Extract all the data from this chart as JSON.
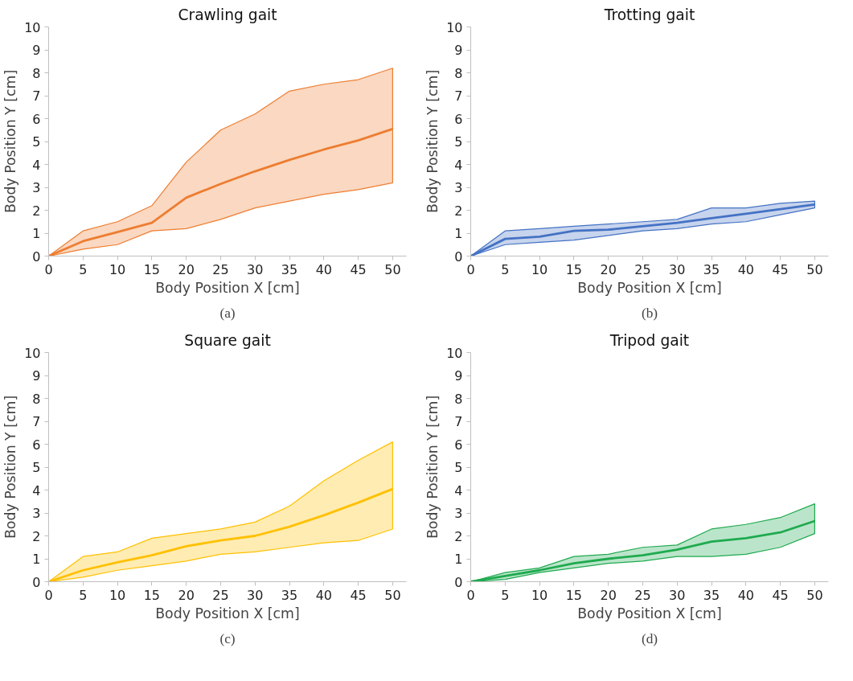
{
  "chart_data": [
    {
      "type": "line",
      "title": "Crawling gait",
      "xlabel": "Body Position X [cm]",
      "ylabel": "Body Position Y [cm]",
      "annotations": [
        "(a)"
      ],
      "x": [
        0,
        5,
        10,
        15,
        20,
        25,
        30,
        35,
        40,
        45,
        50
      ],
      "xlim": [
        0,
        52
      ],
      "ylim": [
        0,
        10
      ],
      "xticks": [
        0,
        5,
        10,
        15,
        20,
        25,
        30,
        35,
        40,
        45,
        50
      ],
      "yticks": [
        0,
        1,
        2,
        3,
        4,
        5,
        6,
        7,
        8,
        9,
        10
      ],
      "grid": false,
      "series": [
        {
          "color": "#ed7d31",
          "values": [
            0,
            0.65,
            1.05,
            1.45,
            2.55,
            3.15,
            3.7,
            4.2,
            4.65,
            5.05,
            5.55
          ],
          "lower": [
            0,
            0.3,
            0.5,
            1.1,
            1.2,
            1.6,
            2.1,
            2.4,
            2.7,
            2.9,
            3.2
          ],
          "upper": [
            0,
            1.1,
            1.5,
            2.2,
            4.1,
            5.5,
            6.2,
            7.2,
            7.5,
            7.7,
            8.2
          ]
        }
      ]
    },
    {
      "type": "line",
      "title": "Trotting gait",
      "xlabel": "Body Position X [cm]",
      "ylabel": "Body Position Y [cm]",
      "annotations": [
        "(b)"
      ],
      "x": [
        0,
        5,
        10,
        15,
        20,
        25,
        30,
        35,
        40,
        45,
        50
      ],
      "xlim": [
        0,
        52
      ],
      "ylim": [
        0,
        10
      ],
      "xticks": [
        0,
        5,
        10,
        15,
        20,
        25,
        30,
        35,
        40,
        45,
        50
      ],
      "yticks": [
        0,
        1,
        2,
        3,
        4,
        5,
        6,
        7,
        8,
        9,
        10
      ],
      "grid": false,
      "series": [
        {
          "color": "#4472c4",
          "values": [
            0,
            0.75,
            0.85,
            1.1,
            1.15,
            1.3,
            1.45,
            1.65,
            1.85,
            2.05,
            2.25
          ],
          "lower": [
            0,
            0.5,
            0.6,
            0.7,
            0.9,
            1.1,
            1.2,
            1.4,
            1.5,
            1.8,
            2.1
          ],
          "upper": [
            0,
            1.1,
            1.2,
            1.3,
            1.4,
            1.5,
            1.6,
            2.1,
            2.1,
            2.3,
            2.4
          ]
        }
      ]
    },
    {
      "type": "line",
      "title": "Square gait",
      "xlabel": "Body Position X [cm]",
      "ylabel": "Body Position Y [cm]",
      "annotations": [
        "(c)"
      ],
      "x": [
        0,
        5,
        10,
        15,
        20,
        25,
        30,
        35,
        40,
        45,
        50
      ],
      "xlim": [
        0,
        52
      ],
      "ylim": [
        0,
        10
      ],
      "xticks": [
        0,
        5,
        10,
        15,
        20,
        25,
        30,
        35,
        40,
        45,
        50
      ],
      "yticks": [
        0,
        1,
        2,
        3,
        4,
        5,
        6,
        7,
        8,
        9,
        10
      ],
      "grid": false,
      "series": [
        {
          "color": "#ffc000",
          "values": [
            0,
            0.5,
            0.85,
            1.15,
            1.55,
            1.8,
            2.0,
            2.4,
            2.9,
            3.45,
            4.05
          ],
          "lower": [
            0,
            0.2,
            0.5,
            0.7,
            0.9,
            1.2,
            1.3,
            1.5,
            1.7,
            1.8,
            2.3
          ],
          "upper": [
            0,
            1.1,
            1.3,
            1.9,
            2.1,
            2.3,
            2.6,
            3.3,
            4.4,
            5.3,
            6.1
          ]
        }
      ]
    },
    {
      "type": "line",
      "title": "Tripod gait",
      "xlabel": "Body Position X [cm]",
      "ylabel": "Body Position Y [cm]",
      "annotations": [
        "(d)"
      ],
      "x": [
        0,
        5,
        10,
        15,
        20,
        25,
        30,
        35,
        40,
        45,
        50
      ],
      "xlim": [
        0,
        52
      ],
      "ylim": [
        0,
        10
      ],
      "xticks": [
        0,
        5,
        10,
        15,
        20,
        25,
        30,
        35,
        40,
        45,
        50
      ],
      "yticks": [
        0,
        1,
        2,
        3,
        4,
        5,
        6,
        7,
        8,
        9,
        10
      ],
      "grid": false,
      "series": [
        {
          "color": "#1faa4f",
          "values": [
            0,
            0.25,
            0.5,
            0.8,
            1.0,
            1.15,
            1.4,
            1.75,
            1.9,
            2.15,
            2.65
          ],
          "lower": [
            0,
            0.1,
            0.4,
            0.6,
            0.8,
            0.9,
            1.1,
            1.1,
            1.2,
            1.5,
            2.1
          ],
          "upper": [
            0,
            0.4,
            0.6,
            1.1,
            1.2,
            1.5,
            1.6,
            2.3,
            2.5,
            2.8,
            3.4
          ]
        }
      ]
    }
  ]
}
